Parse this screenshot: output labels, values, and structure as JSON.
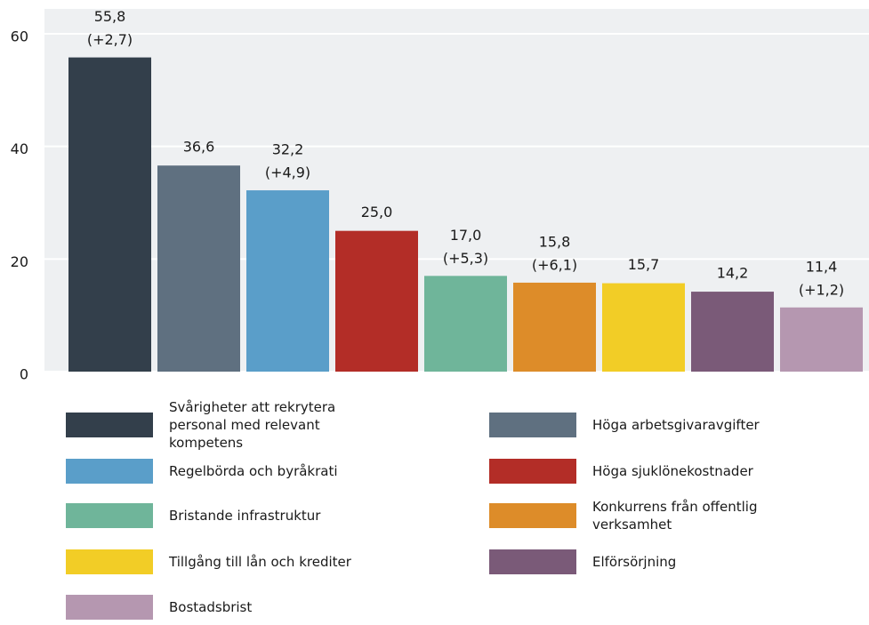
{
  "chart_data": {
    "type": "bar",
    "ylim": [
      0,
      60
    ],
    "yticks": [
      0,
      20,
      40,
      60
    ],
    "grid": true,
    "series": [
      {
        "name": "Svårigheter att rekrytera personal med relevant kompetens",
        "color": "#333f4b",
        "values": [
          55.8
        ],
        "value_labels": [
          "55,8"
        ],
        "changes": [
          2.7
        ],
        "change_labels": [
          "(+2,7)"
        ]
      },
      {
        "name": "Höga arbetsgivaravgifter",
        "color": "#5f7080",
        "values": [
          36.6
        ],
        "value_labels": [
          "36,6"
        ],
        "changes": [
          null
        ],
        "change_labels": [
          null
        ]
      },
      {
        "name": "Regelbörda och byråkrati",
        "color": "#5a9ec9",
        "values": [
          32.2
        ],
        "value_labels": [
          "32,2"
        ],
        "changes": [
          4.9
        ],
        "change_labels": [
          "(+4,9)"
        ]
      },
      {
        "name": "Höga sjuklönekostnader",
        "color": "#b32d27",
        "values": [
          25.0
        ],
        "value_labels": [
          "25,0"
        ],
        "changes": [
          null
        ],
        "change_labels": [
          null
        ]
      },
      {
        "name": "Bristande infrastruktur",
        "color": "#6fb59a",
        "values": [
          17.0
        ],
        "value_labels": [
          "17,0"
        ],
        "changes": [
          5.3
        ],
        "change_labels": [
          "(+5,3)"
        ]
      },
      {
        "name": "Konkurrens från offentlig verksamhet",
        "color": "#dd8c29",
        "values": [
          15.8
        ],
        "value_labels": [
          "15,8"
        ],
        "changes": [
          6.1
        ],
        "change_labels": [
          "(+6,1)"
        ]
      },
      {
        "name": "Tillgång till lån och krediter",
        "color": "#f2cd26",
        "values": [
          15.7
        ],
        "value_labels": [
          "15,7"
        ],
        "changes": [
          null
        ],
        "change_labels": [
          null
        ]
      },
      {
        "name": "Elförsörjning",
        "color": "#7a5a78",
        "values": [
          14.2
        ],
        "value_labels": [
          "14,2"
        ],
        "changes": [
          null
        ],
        "change_labels": [
          null
        ]
      },
      {
        "name": "Bostadsbrist",
        "color": "#b597b0",
        "values": [
          11.4
        ],
        "value_labels": [
          "11,4"
        ],
        "changes": [
          1.2
        ],
        "change_labels": [
          "(+1,2)"
        ]
      }
    ]
  }
}
